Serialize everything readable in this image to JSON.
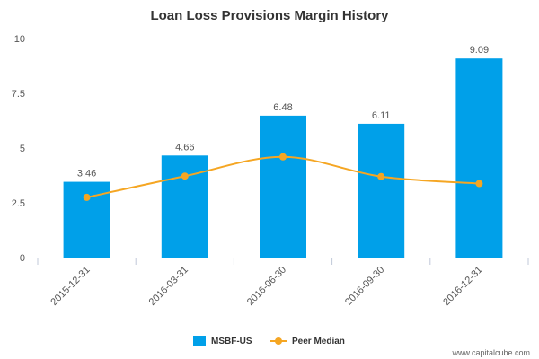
{
  "chart_data": {
    "type": "bar",
    "title": "Loan Loss Provisions Margin History",
    "categories": [
      "2015-12-31",
      "2016-03-31",
      "2016-06-30",
      "2016-09-30",
      "2016-12-31"
    ],
    "series": [
      {
        "name": "MSBF-US",
        "type": "bar",
        "color": "#00a0e9",
        "values": [
          3.46,
          4.66,
          6.48,
          6.11,
          9.09
        ],
        "data_labels": [
          "3.46",
          "4.66",
          "6.48",
          "6.11",
          "9.09"
        ]
      },
      {
        "name": "Peer Median",
        "type": "line",
        "color": "#f5a623",
        "values": [
          2.75,
          3.72,
          4.6,
          3.7,
          3.38
        ]
      }
    ],
    "yticks": [
      "0",
      "2.5",
      "5",
      "7.5",
      "10"
    ],
    "ylim": [
      0,
      10
    ],
    "grid": false,
    "legend_position": "bottom"
  },
  "footer": {
    "credit": "www.capitalcube.com"
  }
}
